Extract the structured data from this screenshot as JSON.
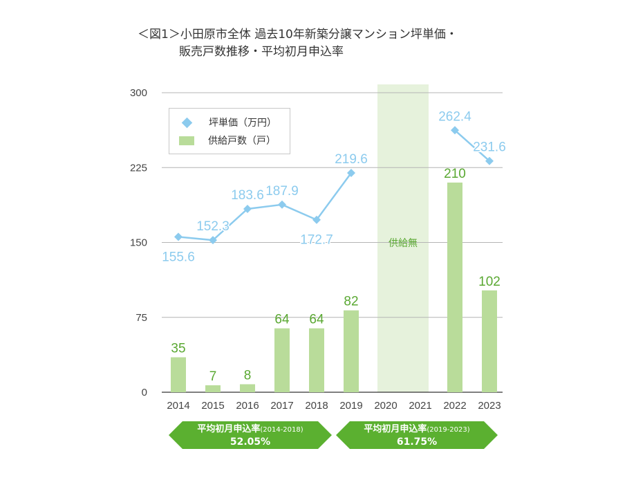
{
  "title": {
    "line1": "＜図1＞小田原市全体 過去10年新築分譲マンション坪単価・",
    "line2": "販売戸数推移・平均初月申込率"
  },
  "legend": {
    "price_label": "坪単価（万円）",
    "units_label": "供給戸数（戸）"
  },
  "no_supply_label": "供給無",
  "summary": [
    {
      "label": "平均初月申込率",
      "period": "(2014-2018)",
      "value": "52.05%"
    },
    {
      "label": "平均初月申込率",
      "period": "(2019-2023)",
      "value": "61.75%"
    }
  ],
  "colors": {
    "bar": "#b9dc9a",
    "bar_label": "#5aa832",
    "line": "#8ccbee",
    "line_label": "#8ccbee",
    "no_supply_band": "#e6f2dc",
    "pill": "#5bb030",
    "grid": "#b4b4b4"
  },
  "chart_data": {
    "type": "bar+line",
    "categories": [
      "2014",
      "2015",
      "2016",
      "2017",
      "2018",
      "2019",
      "2020",
      "2021",
      "2022",
      "2023"
    ],
    "yticks": [
      "0",
      "75",
      "150",
      "225",
      "300"
    ],
    "ylim": [
      0,
      300
    ],
    "series": [
      {
        "name": "供給戸数（戸）",
        "type": "bar",
        "values": [
          35,
          7,
          8,
          64,
          64,
          82,
          null,
          null,
          210,
          102
        ],
        "labels": [
          "35",
          "7",
          "8",
          "64",
          "64",
          "82",
          "",
          "",
          "210",
          "102"
        ]
      },
      {
        "name": "坪単価（万円）",
        "type": "line",
        "values": [
          155.6,
          152.3,
          183.6,
          187.9,
          172.7,
          219.6,
          null,
          null,
          262.4,
          231.6
        ],
        "labels": [
          "155.6",
          "152.3",
          "183.6",
          "187.9",
          "172.7",
          "219.6",
          "",
          "",
          "262.4",
          "231.6"
        ]
      }
    ],
    "no_supply_years": [
      "2020",
      "2021"
    ],
    "grid": true
  }
}
